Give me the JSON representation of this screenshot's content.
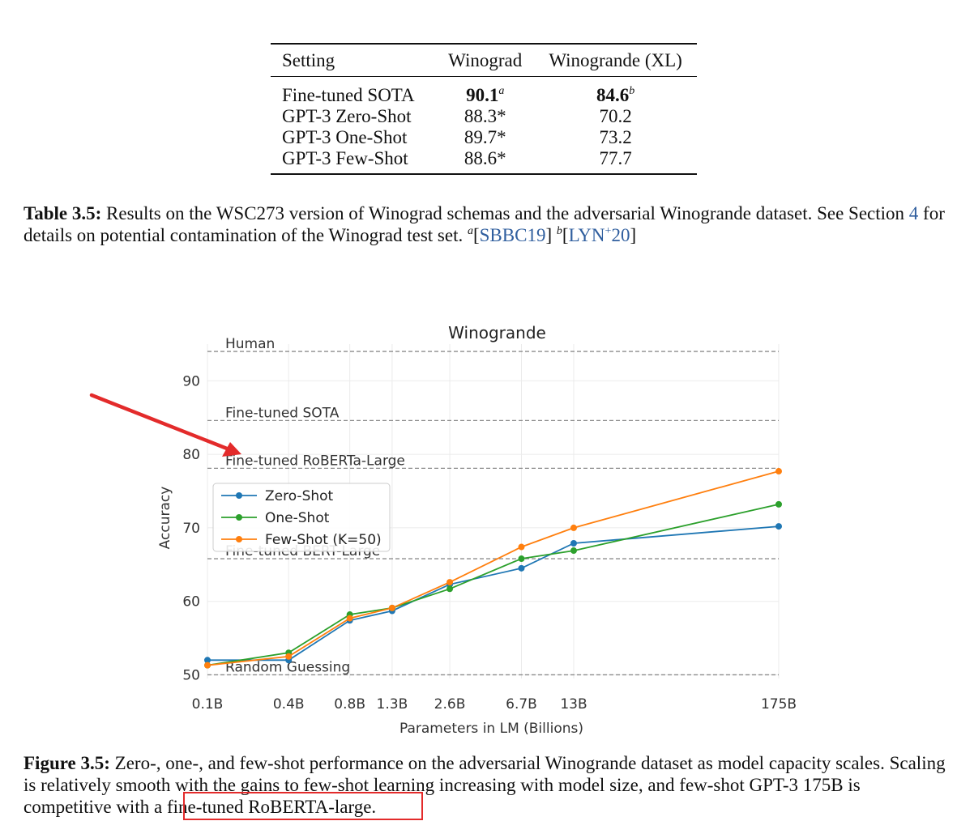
{
  "table": {
    "columns": [
      "Setting",
      "Winograd",
      "Winogrande (XL)"
    ],
    "rows": [
      {
        "setting": "Fine-tuned SOTA",
        "winograd": "90.1",
        "winograd_sup": "a",
        "winogrande": "84.6",
        "winogrande_sup": "b"
      },
      {
        "setting": "GPT-3 Zero-Shot",
        "winograd": "88.3*",
        "winogrande": "70.2"
      },
      {
        "setting": "GPT-3 One-Shot",
        "winograd": "89.7*",
        "winogrande": "73.2"
      },
      {
        "setting": "GPT-3 Few-Shot",
        "winograd": "88.6*",
        "winogrande": "77.7"
      }
    ]
  },
  "table_caption": {
    "label": "Table 3.5:",
    "text_1": "Results on the WSC273 version of Winograd schemas and the adversarial Winogrande dataset. See Section",
    "section_link": "4",
    "text_2": "for details on potential contamination of the Winograd test set.",
    "ref_a_sup": "a",
    "ref_a_open": "[",
    "ref_a": "SBBC19",
    "ref_a_close": "]",
    "ref_b_sup": "b",
    "ref_b_open": "[",
    "ref_b_pre": "LYN",
    "ref_b_plus": "+",
    "ref_b_post": "20",
    "ref_b_close": "]"
  },
  "figure_caption": {
    "label": "Figure 3.5:",
    "text_1": "Zero-, one-, and few-shot performance on the adversarial Winogrande dataset as model capacity scales. Scaling is relatively smooth with the gains to few-shot learning increasing with model size, and few-shot GPT-3 175B is competitive with a",
    "highlighted": "fine-tuned RoBERTA-large."
  },
  "chart_data": {
    "type": "line",
    "title": "Winogrande",
    "xlabel": "Parameters in LM (Billions)",
    "ylabel": "Accuracy",
    "x": [
      "0.1B",
      "0.4B",
      "0.8B",
      "1.3B",
      "2.6B",
      "6.7B",
      "13B",
      "175B"
    ],
    "x_values": [
      0.125,
      0.35,
      0.76,
      1.3,
      2.7,
      6.7,
      13,
      175
    ],
    "x_scale": "log",
    "yticks": [
      50,
      60,
      70,
      80,
      90
    ],
    "ylim": [
      49.5,
      95
    ],
    "grid": true,
    "legend_position": "center-left",
    "series": [
      {
        "name": "Zero-Shot",
        "color": "#1f77b4",
        "values": [
          52.0,
          52.0,
          57.4,
          58.7,
          62.3,
          64.5,
          67.9,
          70.2
        ]
      },
      {
        "name": "One-Shot",
        "color": "#2ca02c",
        "values": [
          51.3,
          53.0,
          58.2,
          59.1,
          61.7,
          65.8,
          66.9,
          73.2
        ]
      },
      {
        "name": "Few-Shot (K=50)",
        "color": "#ff7f0e",
        "values": [
          51.3,
          52.5,
          57.7,
          59.1,
          62.6,
          67.4,
          70.0,
          77.7
        ]
      }
    ],
    "reference_lines": [
      {
        "label": "Human",
        "value": 94.0
      },
      {
        "label": "Fine-tuned SOTA",
        "value": 84.6
      },
      {
        "label": "Fine-tuned RoBERTa-Large",
        "value": 78.1
      },
      {
        "label": "Fine-tuned BERT-Large",
        "value": 65.8
      },
      {
        "label": "Random Guessing",
        "value": 50.0
      }
    ]
  },
  "annotations": {
    "arrow_color": "#e32b2b",
    "box_color": "#e32b2b"
  }
}
